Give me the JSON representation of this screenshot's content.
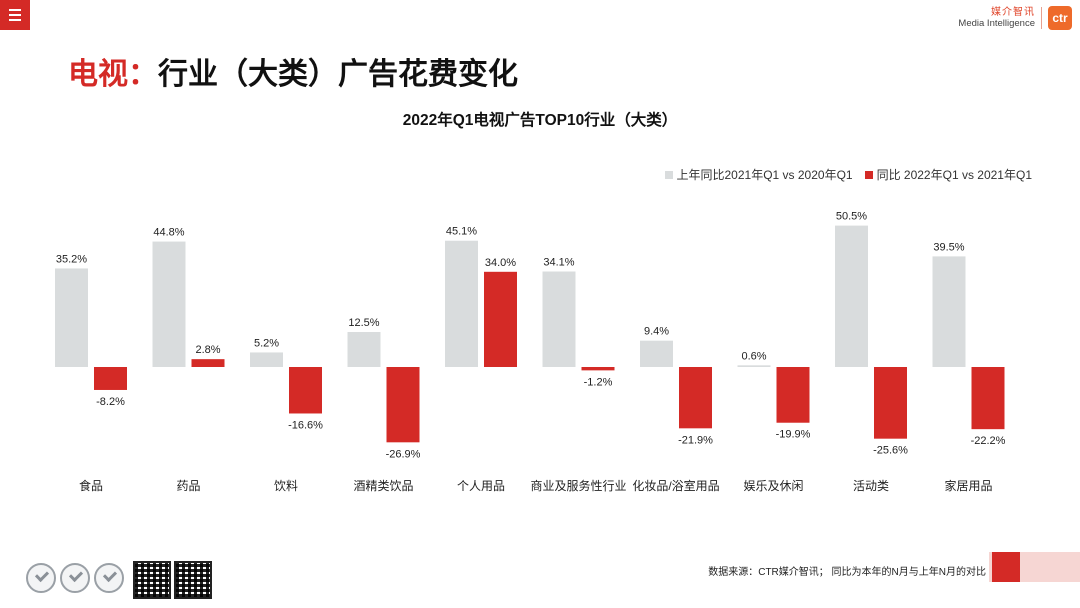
{
  "header": {
    "menu_icon": "hamburger-menu-icon",
    "logo_cn": "媒介智讯",
    "logo_en": "Media Intelligence",
    "logo_mark": "ctr"
  },
  "page_title": {
    "accent": "电视：",
    "main": "行业（大类）广告花费变化"
  },
  "colors": {
    "accent": "#d42a26",
    "series_prev": "#d9dcdd",
    "series_curr": "#d42a26"
  },
  "chart_data": {
    "type": "bar",
    "title": "2022年Q1电视广告TOP10行业（大类）",
    "legend_position": "top-right",
    "categories": [
      "食品",
      "药品",
      "饮料",
      "酒精类饮品",
      "个人用品",
      "商业及服务性行业",
      "化妆品/浴室用品",
      "娱乐及休闲",
      "活动类",
      "家居用品"
    ],
    "series": [
      {
        "name": "上年同比2021年Q1 vs 2020年Q1",
        "values": [
          35.2,
          44.8,
          5.2,
          12.5,
          45.1,
          34.1,
          9.4,
          0.6,
          50.5,
          39.5
        ],
        "labels": [
          "35.2%",
          "44.8%",
          "5.2%",
          "12.5%",
          "45.1%",
          "34.1%",
          "9.4%",
          "0.6%",
          "50.5%",
          "39.5%"
        ]
      },
      {
        "name": "同比 2022年Q1 vs 2021年Q1",
        "values": [
          -8.2,
          2.8,
          -16.6,
          -26.9,
          34.0,
          -1.2,
          -21.9,
          -19.9,
          -25.6,
          -22.2
        ],
        "labels": [
          "-8.2%",
          "2.8%",
          "-16.6%",
          "-26.9%",
          "34.0%",
          "-1.2%",
          "-21.9%",
          "-19.9%",
          "-25.6%",
          "-22.2%"
        ]
      }
    ],
    "grid": false
  },
  "footer": {
    "source": "数据来源：CTR媒介智讯； 同比为本年的N月与上年N月的对比"
  }
}
